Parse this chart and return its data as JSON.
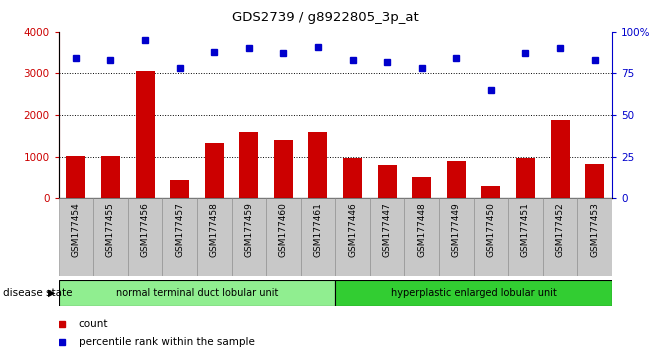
{
  "title": "GDS2739 / g8922805_3p_at",
  "categories": [
    "GSM177454",
    "GSM177455",
    "GSM177456",
    "GSM177457",
    "GSM177458",
    "GSM177459",
    "GSM177460",
    "GSM177461",
    "GSM177446",
    "GSM177447",
    "GSM177448",
    "GSM177449",
    "GSM177450",
    "GSM177451",
    "GSM177452",
    "GSM177453"
  ],
  "bar_values": [
    1020,
    1020,
    3050,
    450,
    1330,
    1600,
    1400,
    1600,
    960,
    790,
    500,
    900,
    300,
    960,
    1880,
    820
  ],
  "dot_values": [
    84,
    83,
    95,
    78,
    88,
    90,
    87,
    91,
    83,
    82,
    78,
    84,
    65,
    87,
    90,
    83
  ],
  "bar_color": "#cc0000",
  "dot_color": "#0000cc",
  "ylim_left": [
    0,
    4000
  ],
  "ylim_right": [
    0,
    100
  ],
  "yticks_left": [
    0,
    1000,
    2000,
    3000,
    4000
  ],
  "yticks_right": [
    0,
    25,
    50,
    75,
    100
  ],
  "yticklabels_right": [
    "0",
    "25",
    "50",
    "75",
    "100%"
  ],
  "group1_label": "normal terminal duct lobular unit",
  "group2_label": "hyperplastic enlarged lobular unit",
  "group1_count": 8,
  "group2_count": 8,
  "legend_count_label": "count",
  "legend_pct_label": "percentile rank within the sample",
  "disease_state_label": "disease state",
  "group1_color": "#90ee90",
  "group2_color": "#32cd32",
  "xtick_bg": "#c8c8c8",
  "grid_color": "#000000"
}
